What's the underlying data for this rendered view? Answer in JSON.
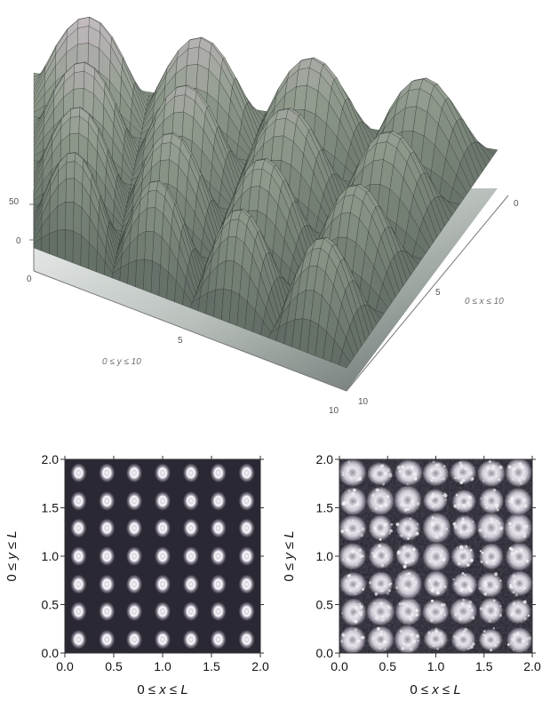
{
  "chart_data": [
    {
      "type": "surface",
      "z_ticks": [
        "50",
        "0"
      ],
      "x_ticks": [
        "0",
        "5",
        "10"
      ],
      "y_ticks": [
        "0",
        "5",
        "10"
      ],
      "x_label_parts": [
        "0 ≤ ",
        "x",
        " ≤ 10"
      ],
      "y_label_parts": [
        "0 ≤ ",
        "y",
        " ≤ 10"
      ],
      "xlim": [
        0,
        10
      ],
      "ylim": [
        0,
        10
      ],
      "grid": true,
      "colors": {
        "surface_top": "#d9c9d6",
        "surface_mid": "#8f9a8c",
        "surface_low": "#5f6a62",
        "mesh": "#1f2420"
      }
    },
    {
      "type": "heatmap",
      "xlim": [
        0,
        2.0
      ],
      "ylim": [
        0,
        2.0
      ],
      "x_ticks": [
        "0.0",
        "0.5",
        "1.0",
        "1.5",
        "2.0"
      ],
      "y_ticks": [
        "0.0",
        "0.5",
        "1.0",
        "1.5",
        "2.0"
      ],
      "x_label_parts": [
        "0 ≤ ",
        "x",
        " ≤ ",
        "L"
      ],
      "y_label_parts": [
        "0 ≤ ",
        "y",
        " ≤ ",
        "L"
      ],
      "peak_x": [
        0.14,
        0.43,
        0.71,
        1.0,
        1.29,
        1.57,
        1.86
      ],
      "peak_y": [
        0.14,
        0.43,
        0.71,
        1.0,
        1.29,
        1.57,
        1.86
      ],
      "colors": {
        "background": "#2a2833",
        "blob": "#d8d4dc"
      }
    },
    {
      "type": "heatmap",
      "xlim": [
        0,
        2.0
      ],
      "ylim": [
        0,
        2.0
      ],
      "x_ticks": [
        "0.0",
        "0.5",
        "1.0",
        "1.5",
        "2.0"
      ],
      "y_ticks": [
        "0.0",
        "0.5",
        "1.0",
        "1.5",
        "2.0"
      ],
      "x_label_parts": [
        "0 ≤ ",
        "x",
        " ≤ ",
        "L"
      ],
      "y_label_parts": [
        "0 ≤ ",
        "y",
        " ≤ ",
        "L"
      ],
      "peak_x": [
        0.14,
        0.43,
        0.71,
        1.0,
        1.29,
        1.57,
        1.86
      ],
      "peak_y": [
        0.14,
        0.43,
        0.71,
        1.0,
        1.29,
        1.57,
        1.86
      ],
      "noisy": true,
      "colors": {
        "background": "#2a2833",
        "blob": "#d8d4dc"
      }
    }
  ]
}
